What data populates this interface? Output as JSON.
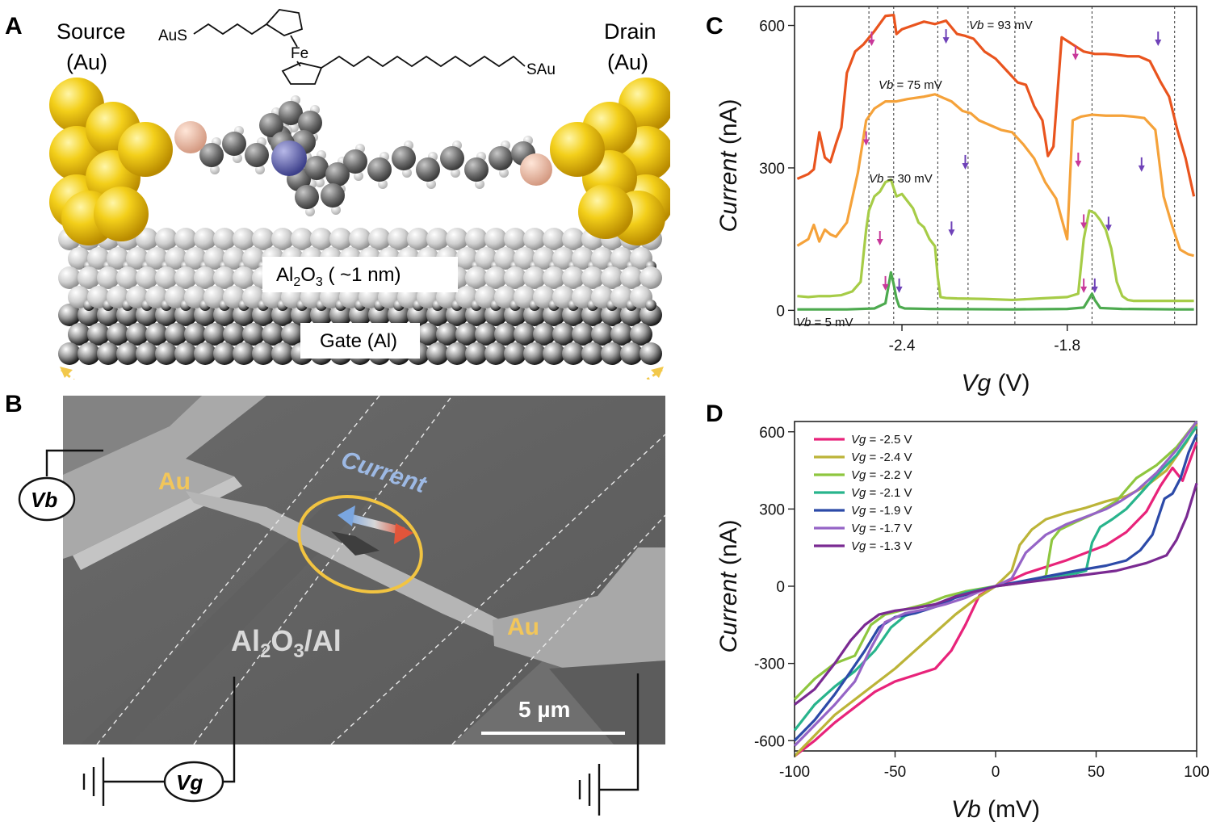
{
  "panels": {
    "a": {
      "letter": "A",
      "source_label": "Source",
      "source_metal": "(Au)",
      "drain_label": "Drain",
      "drain_metal": "(Au)",
      "molecule": {
        "aus_left": "AuS",
        "fe": "Fe",
        "sau_right": "SAu"
      },
      "oxide_label_pre": "Al",
      "oxide_label_sub": "2",
      "oxide_label_mid": "O",
      "oxide_label_sub2": "3",
      "oxide_label_post": " ( ~1 nm)",
      "gate_label": "Gate (Al)"
    },
    "b": {
      "letter": "B",
      "au_left": "Au",
      "au_right": "Au",
      "current_label": "Current",
      "substrate_pre": "Al",
      "substrate_sub": "2",
      "substrate_mid": "O",
      "substrate_sub2": "3",
      "substrate_post": "/Al",
      "scale_bar": "5 µm",
      "vb_label": "Vb",
      "vg_label": "Vg"
    },
    "c": {
      "letter": "C"
    },
    "d": {
      "letter": "D"
    }
  },
  "chart_data": [
    {
      "panel": "C",
      "type": "line",
      "xlabel_italic": "Vg",
      "xlabel_unit": " (V)",
      "ylabel_italic": "Current",
      "ylabel_unit": " (nA)",
      "xlim": [
        -2.79,
        -1.33
      ],
      "ylim": [
        -30,
        640
      ],
      "xticks": [
        -2.4,
        -1.8
      ],
      "xtick_labels": [
        "-2.4",
        "-1.8"
      ],
      "yticks": [
        0,
        300,
        600
      ],
      "ytick_labels": [
        "0",
        "300",
        "600"
      ],
      "dashed_lines_x": [
        -2.52,
        -2.43,
        -2.27,
        -2.16,
        -1.99,
        -1.71,
        -1.41
      ],
      "series": [
        {
          "name": "Vb = 93 mV",
          "label_var": "Vb",
          "label_val": " = 93 mV",
          "color": "#e9541e",
          "x": [
            -2.78,
            -2.74,
            -2.72,
            -2.7,
            -2.68,
            -2.66,
            -2.64,
            -2.62,
            -2.6,
            -2.57,
            -2.54,
            -2.5,
            -2.46,
            -2.43,
            -2.42,
            -2.4,
            -2.36,
            -2.32,
            -2.28,
            -2.24,
            -2.2,
            -2.17,
            -2.14,
            -2.1,
            -2.06,
            -2.02,
            -1.98,
            -1.95,
            -1.92,
            -1.89,
            -1.87,
            -1.85,
            -1.82,
            -1.78,
            -1.74,
            -1.7,
            -1.66,
            -1.62,
            -1.58,
            -1.54,
            -1.5,
            -1.46,
            -1.43,
            -1.4,
            -1.37,
            -1.34
          ],
          "y": [
            277,
            287,
            297,
            375,
            322,
            312,
            350,
            385,
            500,
            545,
            560,
            588,
            620,
            622,
            582,
            592,
            600,
            608,
            603,
            610,
            582,
            578,
            572,
            545,
            530,
            505,
            480,
            475,
            430,
            400,
            325,
            345,
            575,
            560,
            545,
            540,
            540,
            538,
            535,
            535,
            525,
            480,
            450,
            380,
            320,
            240
          ]
        },
        {
          "name": "Vb = 75 mV",
          "label_var": "Vb",
          "label_val": " = 75 mV",
          "color": "#f5a23a",
          "x": [
            -2.78,
            -2.74,
            -2.72,
            -2.7,
            -2.68,
            -2.66,
            -2.64,
            -2.6,
            -2.56,
            -2.53,
            -2.5,
            -2.46,
            -2.42,
            -2.38,
            -2.32,
            -2.28,
            -2.22,
            -2.18,
            -2.15,
            -2.12,
            -2.08,
            -2.04,
            -2.0,
            -1.96,
            -1.92,
            -1.88,
            -1.84,
            -1.8,
            -1.78,
            -1.75,
            -1.71,
            -1.66,
            -1.6,
            -1.56,
            -1.52,
            -1.48,
            -1.45,
            -1.42,
            -1.39,
            -1.36,
            -1.34
          ],
          "y": [
            136,
            150,
            180,
            145,
            170,
            160,
            155,
            185,
            290,
            400,
            425,
            440,
            440,
            445,
            450,
            455,
            440,
            420,
            415,
            400,
            390,
            380,
            375,
            350,
            320,
            270,
            235,
            150,
            400,
            408,
            412,
            410,
            410,
            408,
            405,
            380,
            240,
            180,
            128,
            118,
            115
          ]
        },
        {
          "name": "Vb = 30 mV",
          "label_var": "Vb",
          "label_val": " = 30 mV",
          "color": "#a6cc47",
          "x": [
            -2.78,
            -2.74,
            -2.7,
            -2.66,
            -2.62,
            -2.58,
            -2.55,
            -2.53,
            -2.52,
            -2.5,
            -2.48,
            -2.46,
            -2.44,
            -2.42,
            -2.4,
            -2.38,
            -2.36,
            -2.34,
            -2.32,
            -2.3,
            -2.28,
            -2.27,
            -2.26,
            -2.24,
            -2.2,
            -2.1,
            -2.0,
            -1.9,
            -1.8,
            -1.76,
            -1.74,
            -1.72,
            -1.7,
            -1.68,
            -1.66,
            -1.64,
            -1.62,
            -1.6,
            -1.58,
            -1.56,
            -1.5,
            -1.4,
            -1.34
          ],
          "y": [
            30,
            28,
            30,
            30,
            32,
            40,
            60,
            170,
            210,
            240,
            250,
            270,
            275,
            240,
            245,
            230,
            215,
            185,
            175,
            150,
            135,
            70,
            28,
            26,
            25,
            24,
            22,
            25,
            28,
            35,
            150,
            210,
            205,
            190,
            170,
            130,
            60,
            30,
            22,
            20,
            20,
            20,
            20
          ]
        },
        {
          "name": "Vb = 5 mV",
          "label_var": "Vb",
          "label_val": " = 5 mV",
          "color": "#4daa4f",
          "x": [
            -2.78,
            -2.6,
            -2.5,
            -2.46,
            -2.44,
            -2.43,
            -2.42,
            -2.41,
            -2.39,
            -2.3,
            -2.0,
            -1.8,
            -1.74,
            -1.72,
            -1.71,
            -1.7,
            -1.68,
            -1.6,
            -1.4,
            -1.34
          ],
          "y": [
            2,
            2,
            4,
            15,
            80,
            55,
            25,
            8,
            4,
            3,
            2,
            3,
            6,
            25,
            35,
            22,
            5,
            3,
            2,
            2
          ]
        }
      ],
      "arrows": {
        "magenta": [
          [
            -2.51,
            560
          ],
          [
            -2.53,
            350
          ],
          [
            -2.48,
            140
          ],
          [
            -2.46,
            45
          ],
          [
            -1.77,
            530
          ],
          [
            -1.76,
            305
          ],
          [
            -1.74,
            175
          ],
          [
            -1.74,
            40
          ]
        ],
        "purple": [
          [
            -2.24,
            565
          ],
          [
            -2.17,
            300
          ],
          [
            -2.22,
            160
          ],
          [
            -2.41,
            40
          ],
          [
            -1.47,
            560
          ],
          [
            -1.53,
            295
          ],
          [
            -1.65,
            170
          ],
          [
            -1.7,
            40
          ]
        ]
      }
    },
    {
      "panel": "D",
      "type": "line",
      "xlabel_italic": "Vb",
      "xlabel_unit": " (mV)",
      "ylabel_italic": "Current",
      "ylabel_unit": " (nA)",
      "xlim": [
        -100,
        100
      ],
      "ylim": [
        -640,
        640
      ],
      "xticks": [
        -100,
        -50,
        0,
        50,
        100
      ],
      "xtick_labels": [
        "-100",
        "-50",
        "0",
        "50",
        "100"
      ],
      "yticks": [
        -600,
        -300,
        0,
        300,
        600
      ],
      "ytick_labels": [
        "-600",
        "-300",
        "0",
        "300",
        "600"
      ],
      "legend_position": "top-left",
      "series": [
        {
          "name": "Vg = -2.5 V",
          "label_var": "Vg",
          "label_val": " = -2.5 V",
          "color": "#e8237a",
          "x": [
            -100,
            -90,
            -80,
            -70,
            -60,
            -50,
            -40,
            -30,
            -22,
            -15,
            -8,
            0,
            8,
            15,
            25,
            35,
            45,
            55,
            65,
            75,
            82,
            88,
            93,
            100
          ],
          "y": [
            -660,
            -600,
            -530,
            -470,
            -410,
            -370,
            -345,
            -320,
            -250,
            -150,
            -35,
            0,
            25,
            50,
            75,
            100,
            130,
            160,
            210,
            290,
            390,
            460,
            410,
            560
          ]
        },
        {
          "name": "Vg = -2.4 V",
          "label_var": "Vg",
          "label_val": " = -2.4 V",
          "color": "#bcb438",
          "x": [
            -100,
            -90,
            -80,
            -70,
            -60,
            -50,
            -40,
            -30,
            -20,
            -10,
            0,
            8,
            12,
            18,
            25,
            35,
            45,
            55,
            65,
            75,
            85,
            95,
            100
          ],
          "y": [
            -660,
            -580,
            -500,
            -440,
            -380,
            -320,
            -250,
            -180,
            -110,
            -50,
            0,
            60,
            160,
            220,
            260,
            285,
            305,
            330,
            350,
            390,
            450,
            560,
            630
          ]
        },
        {
          "name": "Vg = -2.2 V",
          "label_var": "Vg",
          "label_val": " = -2.2 V",
          "color": "#8ec63f",
          "x": [
            -100,
            -90,
            -80,
            -70,
            -62,
            -55,
            -45,
            -35,
            -25,
            -15,
            0,
            10,
            20,
            25,
            28,
            32,
            40,
            50,
            60,
            70,
            80,
            90,
            100
          ],
          "y": [
            -440,
            -360,
            -300,
            -270,
            -150,
            -110,
            -90,
            -70,
            -40,
            -20,
            0,
            10,
            25,
            40,
            180,
            220,
            250,
            285,
            330,
            420,
            470,
            540,
            640
          ]
        },
        {
          "name": "Vg = -2.1 V",
          "label_var": "Vg",
          "label_val": " = -2.1 V",
          "color": "#28b48c",
          "x": [
            -100,
            -90,
            -80,
            -70,
            -60,
            -52,
            -45,
            -35,
            -25,
            -15,
            0,
            15,
            30,
            40,
            45,
            48,
            52,
            58,
            65,
            72,
            80,
            90,
            100
          ],
          "y": [
            -560,
            -460,
            -390,
            -330,
            -250,
            -160,
            -115,
            -90,
            -55,
            -25,
            0,
            20,
            40,
            50,
            60,
            170,
            230,
            260,
            300,
            360,
            430,
            510,
            620
          ]
        },
        {
          "name": "Vg = -1.9 V",
          "label_var": "Vg",
          "label_val": " = -1.9 V",
          "color": "#2c4aa8",
          "x": [
            -100,
            -90,
            -80,
            -72,
            -65,
            -58,
            -50,
            -40,
            -30,
            -20,
            0,
            20,
            40,
            55,
            65,
            72,
            78,
            84,
            88,
            92,
            96,
            100
          ],
          "y": [
            -600,
            -520,
            -420,
            -330,
            -250,
            -160,
            -120,
            -105,
            -80,
            -45,
            0,
            30,
            60,
            80,
            100,
            140,
            200,
            340,
            360,
            420,
            520,
            590
          ]
        },
        {
          "name": "Vg = -1.7 V",
          "label_var": "Vg",
          "label_val": " = -1.7 V",
          "color": "#9564c6",
          "x": [
            -100,
            -90,
            -80,
            -70,
            -62,
            -55,
            -45,
            -35,
            -25,
            -15,
            -8,
            0,
            8,
            15,
            25,
            35,
            45,
            55,
            62,
            70,
            80,
            90,
            100
          ],
          "y": [
            -620,
            -540,
            -460,
            -370,
            -240,
            -140,
            -105,
            -90,
            -70,
            -45,
            -20,
            0,
            30,
            130,
            200,
            240,
            270,
            300,
            330,
            370,
            440,
            530,
            640
          ]
        },
        {
          "name": "Vg = -1.3 V",
          "label_var": "Vg",
          "label_val": " = -1.3 V",
          "color": "#7a2a92",
          "x": [
            -100,
            -90,
            -80,
            -72,
            -65,
            -58,
            -50,
            -40,
            -30,
            -20,
            0,
            20,
            40,
            60,
            75,
            85,
            90,
            95,
            100
          ],
          "y": [
            -460,
            -400,
            -300,
            -210,
            -150,
            -110,
            -95,
            -85,
            -70,
            -40,
            0,
            20,
            40,
            60,
            90,
            120,
            180,
            270,
            400
          ]
        }
      ]
    }
  ]
}
